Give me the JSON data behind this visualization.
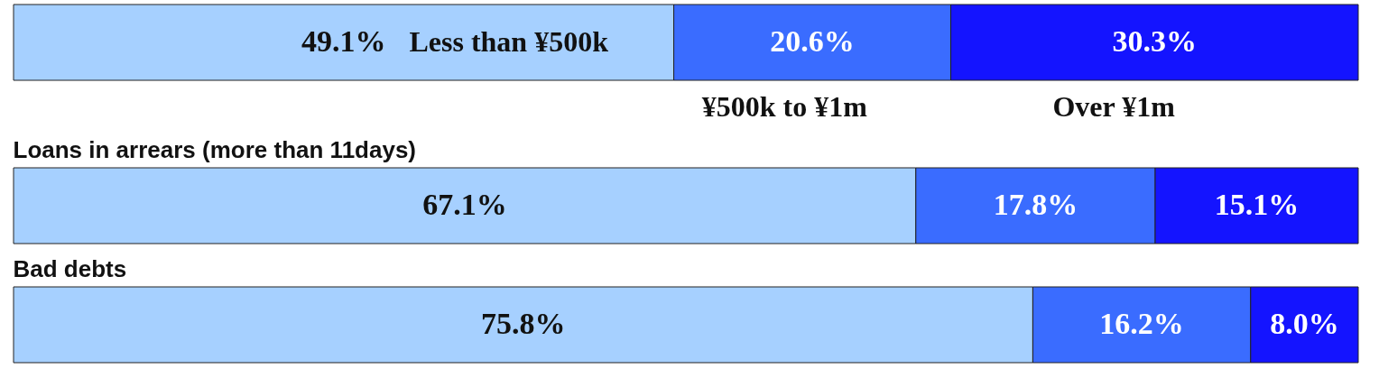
{
  "chart_data": [
    {
      "type": "bar",
      "orientation": "horizontal",
      "stacked": true,
      "categories": [
        null
      ],
      "xlim": [
        0,
        100
      ],
      "tick_labels": false,
      "grid": false,
      "legend": "bottom",
      "series": [
        {
          "name": "Less than ¥500k",
          "color": "#a6d0ff",
          "values": [
            49.1
          ],
          "value_labels": [
            "49.1%"
          ]
        },
        {
          "name": "¥500k to ¥1m",
          "color": "#3a6cff",
          "values": [
            20.6
          ],
          "value_labels": [
            "20.6%"
          ]
        },
        {
          "name": "Over ¥1m",
          "color": "#1414ff",
          "values": [
            30.3
          ],
          "value_labels": [
            "30.3%"
          ]
        }
      ]
    },
    {
      "type": "bar",
      "orientation": "horizontal",
      "stacked": true,
      "title": "Loans in arrears (more than 11days)",
      "categories": [
        null
      ],
      "xlim": [
        0,
        100
      ],
      "tick_labels": false,
      "grid": false,
      "series": [
        {
          "color": "#a6d0ff",
          "values": [
            67.1
          ],
          "value_labels": [
            "67.1%"
          ]
        },
        {
          "color": "#3a6cff",
          "values": [
            17.8
          ],
          "value_labels": [
            "17.8%"
          ]
        },
        {
          "color": "#1414ff",
          "values": [
            15.1
          ],
          "value_labels": [
            "15.1%"
          ]
        }
      ]
    },
    {
      "type": "bar",
      "orientation": "horizontal",
      "stacked": true,
      "title": "Bad debts",
      "categories": [
        null
      ],
      "xlim": [
        0,
        100
      ],
      "tick_labels": false,
      "grid": false,
      "series": [
        {
          "color": "#a6d0ff",
          "values": [
            75.8
          ],
          "value_labels": [
            "75.8%"
          ]
        },
        {
          "color": "#3a6cff",
          "values": [
            16.2
          ],
          "value_labels": [
            "16.2%"
          ]
        },
        {
          "color": "#1414ff",
          "values": [
            8.0
          ],
          "value_labels": [
            "8.0%"
          ]
        }
      ]
    }
  ]
}
